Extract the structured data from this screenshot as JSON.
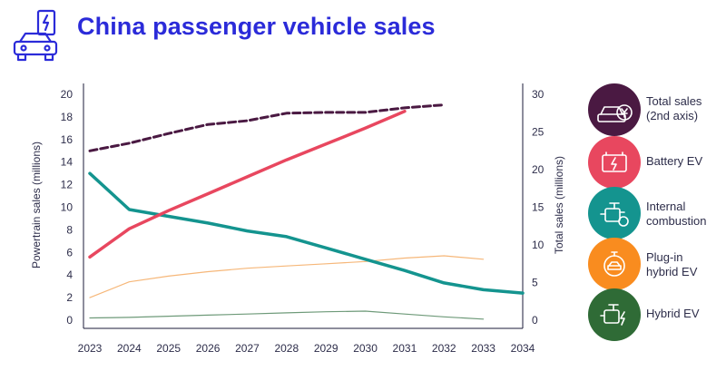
{
  "header": {
    "title": "China passenger vehicle sales",
    "icon": "electric-car-icon"
  },
  "chart_data": {
    "type": "line",
    "title": "China passenger vehicle sales",
    "ylabel": "Powertrain sales (millions)",
    "y2label": "Total sales (millions)",
    "xlim": [
      2023,
      2034
    ],
    "ylim": [
      0,
      20
    ],
    "y2lim": [
      0,
      30
    ],
    "x_ticks": [
      "2023",
      "2024",
      "2025",
      "2026",
      "2027",
      "2028",
      "2029",
      "2030",
      "2031",
      "2032",
      "2033",
      "2034"
    ],
    "y_ticks": [
      "0",
      "2",
      "4",
      "6",
      "8",
      "10",
      "12",
      "14",
      "16",
      "18",
      "20"
    ],
    "y2_ticks": [
      "0",
      "5",
      "10",
      "15",
      "20",
      "25",
      "30"
    ],
    "series": [
      {
        "name": "Total sales (2nd axis)",
        "axis": "right",
        "color": "#4a1942",
        "style": "dashed",
        "points": [
          [
            2023,
            22.5
          ],
          [
            2024,
            23.5
          ],
          [
            2025,
            24.8
          ],
          [
            2026,
            26.0
          ],
          [
            2027,
            26.5
          ],
          [
            2028,
            27.5
          ],
          [
            2029,
            27.6
          ],
          [
            2030,
            27.6
          ],
          [
            2031,
            28.2
          ],
          [
            2032,
            28.6
          ]
        ]
      },
      {
        "name": "Battery EV",
        "axis": "left",
        "color": "#e8475f",
        "style": "solid",
        "points": [
          [
            2023,
            5.6
          ],
          [
            2024,
            8.1
          ],
          [
            2025,
            9.7
          ],
          [
            2026,
            11.2
          ],
          [
            2027,
            12.7
          ],
          [
            2028,
            14.2
          ],
          [
            2029,
            15.6
          ],
          [
            2030,
            17.0
          ],
          [
            2031,
            18.5
          ]
        ]
      },
      {
        "name": "Internal combustion",
        "axis": "left",
        "color": "#14948f",
        "style": "solid",
        "points": [
          [
            2023,
            13.0
          ],
          [
            2024,
            9.8
          ],
          [
            2025,
            9.2
          ],
          [
            2026,
            8.6
          ],
          [
            2027,
            7.9
          ],
          [
            2028,
            7.4
          ],
          [
            2029,
            6.4
          ],
          [
            2030,
            5.4
          ],
          [
            2031,
            4.4
          ],
          [
            2032,
            3.3
          ],
          [
            2033,
            2.7
          ],
          [
            2034,
            2.4
          ]
        ]
      },
      {
        "name": "Plug-in hybrid EV",
        "axis": "left",
        "color": "#f6b779",
        "style": "thin",
        "points": [
          [
            2023,
            2.0
          ],
          [
            2024,
            3.4
          ],
          [
            2025,
            3.9
          ],
          [
            2026,
            4.3
          ],
          [
            2027,
            4.6
          ],
          [
            2028,
            4.8
          ],
          [
            2029,
            5.0
          ],
          [
            2030,
            5.2
          ],
          [
            2031,
            5.5
          ],
          [
            2032,
            5.7
          ],
          [
            2033,
            5.4
          ]
        ]
      },
      {
        "name": "Hybrid EV",
        "axis": "left",
        "color": "#6e9a79",
        "style": "thin",
        "points": [
          [
            2023,
            0.2
          ],
          [
            2024,
            0.25
          ],
          [
            2025,
            0.35
          ],
          [
            2026,
            0.45
          ],
          [
            2027,
            0.55
          ],
          [
            2028,
            0.65
          ],
          [
            2029,
            0.75
          ],
          [
            2030,
            0.8
          ],
          [
            2031,
            0.55
          ],
          [
            2032,
            0.3
          ],
          [
            2033,
            0.1
          ]
        ]
      }
    ],
    "grid": false,
    "legend_position": "right"
  },
  "legend": [
    {
      "label": "Total sales\n(2nd axis)",
      "color": "#4a1942",
      "icon": "car-yuan-icon"
    },
    {
      "label": "Battery EV",
      "color": "#e8475f",
      "icon": "battery-bolt-icon"
    },
    {
      "label": "Internal\ncombustion",
      "color": "#14948f",
      "icon": "engine-icon"
    },
    {
      "label": "Plug-in\nhybrid EV",
      "color": "#f98c1f",
      "icon": "plug-car-icon"
    },
    {
      "label": "Hybrid EV",
      "color": "#2f6b36",
      "icon": "engine-bolt-icon"
    }
  ]
}
